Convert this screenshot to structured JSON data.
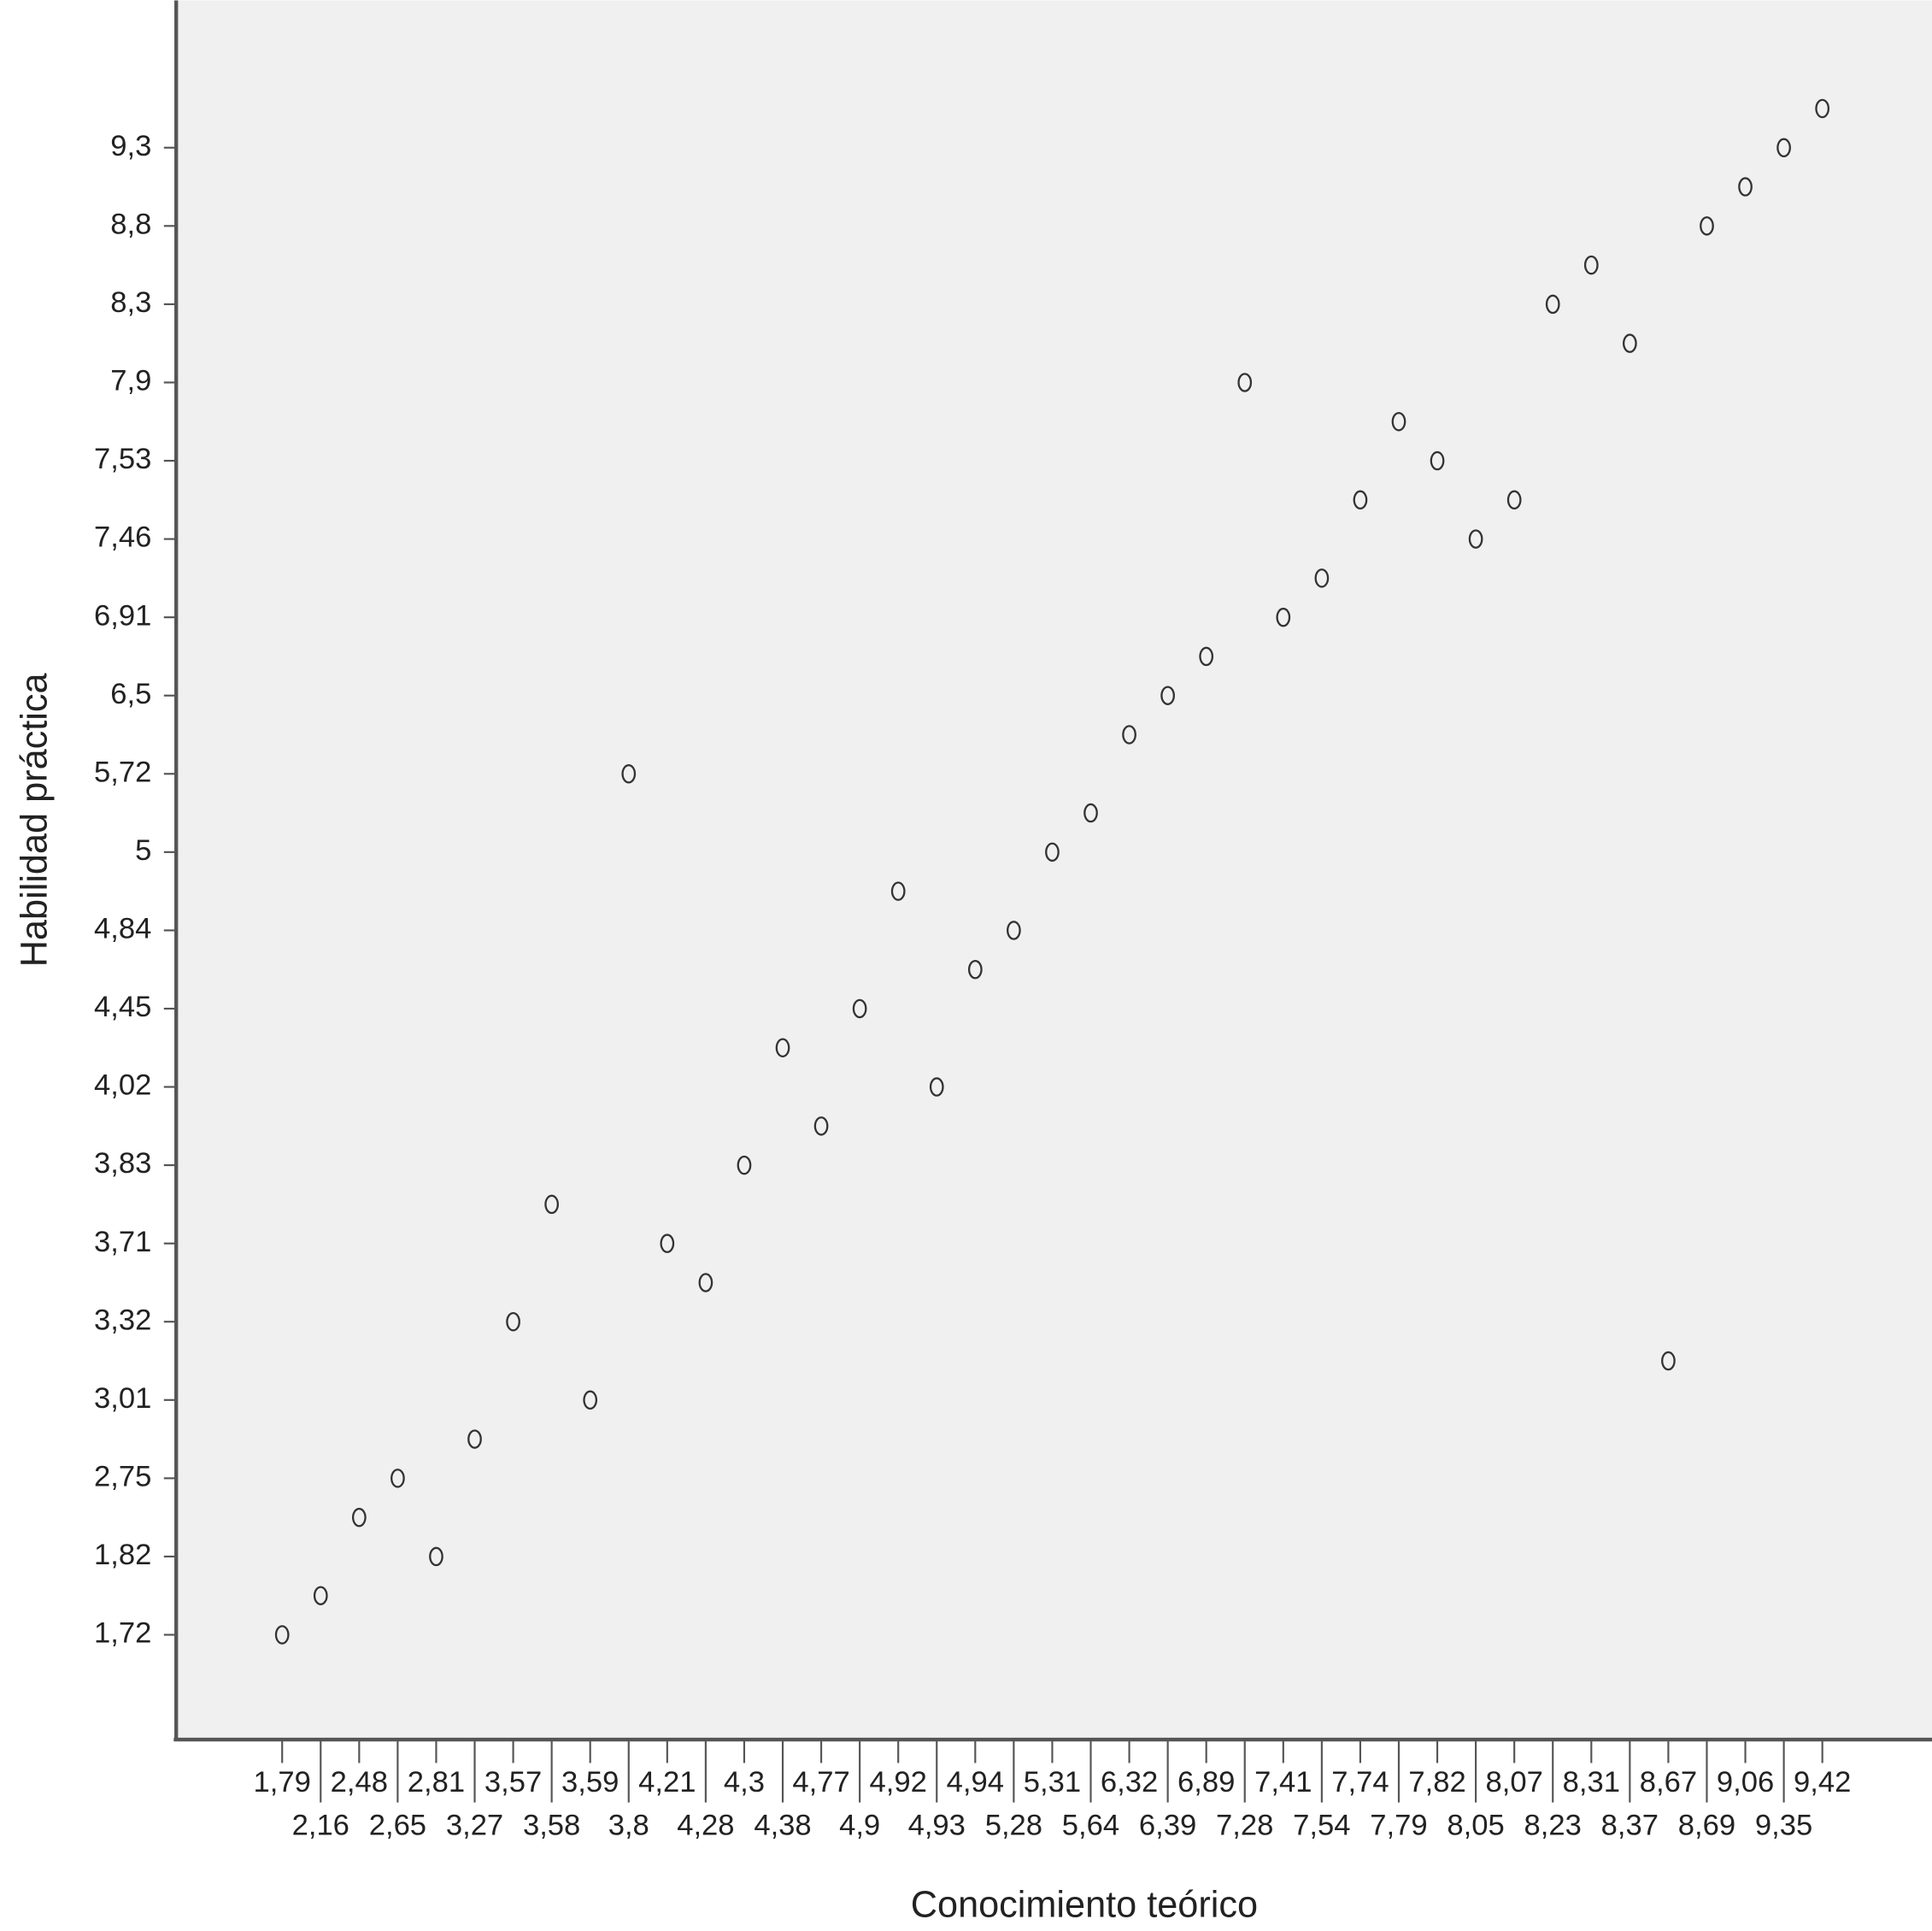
{
  "chart_data": {
    "type": "scatter",
    "xlabel": "Conocimiento teórico",
    "ylabel": "Habilidad práctica",
    "color": "#333333",
    "background": "#f0f0f0",
    "grid": false,
    "xticks": [
      {
        "value": 1.79,
        "label": "1,79"
      },
      {
        "value": 2.16,
        "label": "2,16"
      },
      {
        "value": 2.48,
        "label": "2,48"
      },
      {
        "value": 2.65,
        "label": "2,65"
      },
      {
        "value": 2.81,
        "label": "2,81"
      },
      {
        "value": 3.27,
        "label": "3,27"
      },
      {
        "value": 3.57,
        "label": "3,57"
      },
      {
        "value": 3.58,
        "label": "3,58"
      },
      {
        "value": 3.59,
        "label": "3,59"
      },
      {
        "value": 3.8,
        "label": "3,8"
      },
      {
        "value": 4.21,
        "label": "4,21"
      },
      {
        "value": 4.28,
        "label": "4,28"
      },
      {
        "value": 4.3,
        "label": "4,3"
      },
      {
        "value": 4.38,
        "label": "4,38"
      },
      {
        "value": 4.77,
        "label": "4,77"
      },
      {
        "value": 4.9,
        "label": "4,9"
      },
      {
        "value": 4.92,
        "label": "4,92"
      },
      {
        "value": 4.93,
        "label": "4,93"
      },
      {
        "value": 4.94,
        "label": "4,94"
      },
      {
        "value": 5.28,
        "label": "5,28"
      },
      {
        "value": 5.31,
        "label": "5,31"
      },
      {
        "value": 5.64,
        "label": "5,64"
      },
      {
        "value": 6.32,
        "label": "6,32"
      },
      {
        "value": 6.39,
        "label": "6,39"
      },
      {
        "value": 6.89,
        "label": "6,89"
      },
      {
        "value": 7.28,
        "label": "7,28"
      },
      {
        "value": 7.41,
        "label": "7,41"
      },
      {
        "value": 7.54,
        "label": "7,54"
      },
      {
        "value": 7.74,
        "label": "7,74"
      },
      {
        "value": 7.79,
        "label": "7,79"
      },
      {
        "value": 7.82,
        "label": "7,82"
      },
      {
        "value": 8.05,
        "label": "8,05"
      },
      {
        "value": 8.07,
        "label": "8,07"
      },
      {
        "value": 8.23,
        "label": "8,23"
      },
      {
        "value": 8.31,
        "label": "8,31"
      },
      {
        "value": 8.37,
        "label": "8,37"
      },
      {
        "value": 8.67,
        "label": "8,67"
      },
      {
        "value": 8.69,
        "label": "8,69"
      },
      {
        "value": 9.06,
        "label": "9,06"
      },
      {
        "value": 9.35,
        "label": "9,35"
      },
      {
        "value": 9.42,
        "label": "9,42"
      }
    ],
    "yticks": [
      {
        "value": 1.72,
        "label": "1,72"
      },
      {
        "value": 1.82,
        "label": "1,82"
      },
      {
        "value": 2.75,
        "label": "2,75"
      },
      {
        "value": 3.01,
        "label": "3,01"
      },
      {
        "value": 3.32,
        "label": "3,32"
      },
      {
        "value": 3.71,
        "label": "3,71"
      },
      {
        "value": 3.83,
        "label": "3,83"
      },
      {
        "value": 4.02,
        "label": "4,02"
      },
      {
        "value": 4.45,
        "label": "4,45"
      },
      {
        "value": 4.84,
        "label": "4,84"
      },
      5,
      {
        "value": 5.72,
        "label": "5,72"
      },
      {
        "value": 6.5,
        "label": "6,5"
      },
      {
        "value": 6.91,
        "label": "6,91"
      },
      {
        "value": 7.46,
        "label": "7,46"
      },
      {
        "value": 7.53,
        "label": "7,53"
      },
      {
        "value": 7.9,
        "label": "7,9"
      },
      {
        "value": 8.3,
        "label": "8,3"
      },
      {
        "value": 8.8,
        "label": "8,8"
      },
      {
        "value": 9.3,
        "label": "9,3"
      }
    ],
    "series": [
      {
        "x": [
          1.79,
          2.16,
          2.48,
          2.65,
          2.81,
          3.27,
          3.57,
          3.58,
          3.59,
          3.8,
          4.21,
          4.28,
          4.3,
          4.38,
          4.77,
          4.9,
          4.92,
          4.93,
          4.94,
          5.28,
          5.31,
          5.64,
          6.32,
          6.39,
          6.89,
          7.28,
          7.41,
          7.54,
          7.74,
          7.79,
          7.82,
          8.05,
          8.07,
          8.23,
          8.31,
          8.37,
          8.67,
          8.69,
          9.06,
          9.35,
          9.42
        ],
        "values": [
          1.72,
          1.77,
          2.285,
          2.75,
          1.82,
          2.88,
          3.32,
          3.77,
          3.01,
          5.72,
          3.71,
          3.515,
          3.83,
          4.235,
          3.925,
          4.45,
          4.92,
          4.02,
          4.645,
          4.84,
          5,
          5.36,
          6.11,
          6.5,
          6.705,
          7.9,
          6.91,
          7.185,
          7.495,
          7.715,
          7.53,
          7.46,
          7.495,
          8.3,
          8.55,
          8.1,
          3.165,
          8.8,
          9.05,
          9.3,
          9.55
        ]
      }
    ]
  }
}
